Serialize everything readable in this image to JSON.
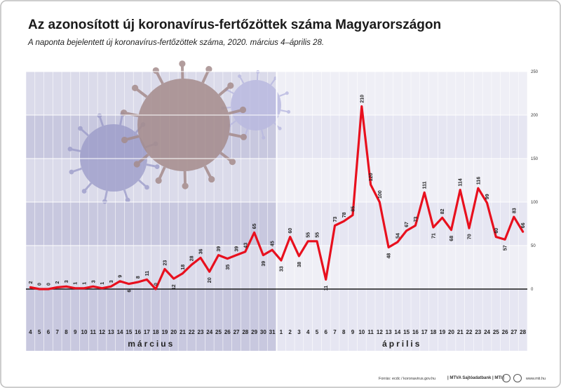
{
  "title": "Az azonosított új koronavírus-fertőzöttek száma Magyarországon",
  "subtitle": "A naponta bejelentett új koronavírus-fertőzöttek száma, 2020. március 4–április 28.",
  "footer": {
    "source": "Forrás: ecdc / koronavirus.gov.hu",
    "brand": "| MTVA Sajtóadatbank | MTI |",
    "url": "www.mti.hu"
  },
  "colors": {
    "line": "#e8101e",
    "march_bg": "#c8c8df",
    "april_bg": "#e6e6f2"
  },
  "chart_data": {
    "type": "line",
    "title": "Az azonosított új koronavírus-fertőzöttek száma Magyarországon",
    "subtitle": "A naponta bejelentett új koronavírus-fertőzöttek száma, 2020. március 4–április 28.",
    "xlabel": "",
    "ylabel": "",
    "ylim": [
      0,
      250
    ],
    "yticks": [
      0,
      50,
      100,
      150,
      200,
      250
    ],
    "grid": true,
    "months": [
      {
        "label": "március",
        "days": [
          "4",
          "5",
          "6",
          "7",
          "8",
          "9",
          "10",
          "11",
          "12",
          "13",
          "14",
          "15",
          "16",
          "17",
          "18",
          "19",
          "20",
          "21",
          "22",
          "23",
          "24",
          "25",
          "26",
          "27",
          "28",
          "29",
          "30",
          "31"
        ]
      },
      {
        "label": "április",
        "days": [
          "1",
          "2",
          "3",
          "4",
          "5",
          "6",
          "7",
          "8",
          "9",
          "10",
          "11",
          "12",
          "13",
          "14",
          "15",
          "16",
          "17",
          "18",
          "19",
          "20",
          "21",
          "22",
          "23",
          "24",
          "25",
          "26",
          "27",
          "28"
        ]
      }
    ],
    "series": [
      {
        "values": [
          2,
          0,
          0,
          2,
          3,
          1,
          1,
          3,
          1,
          3,
          9,
          6,
          8,
          11,
          0,
          23,
          12,
          18,
          28,
          36,
          20,
          39,
          35,
          39,
          43,
          65,
          39,
          45,
          33,
          60,
          38,
          55,
          55,
          11,
          73,
          78,
          85,
          210,
          120,
          100,
          48,
          54,
          67,
          73,
          111,
          71,
          82,
          68,
          114,
          70,
          116,
          99,
          60,
          57,
          83,
          66
        ]
      }
    ]
  }
}
